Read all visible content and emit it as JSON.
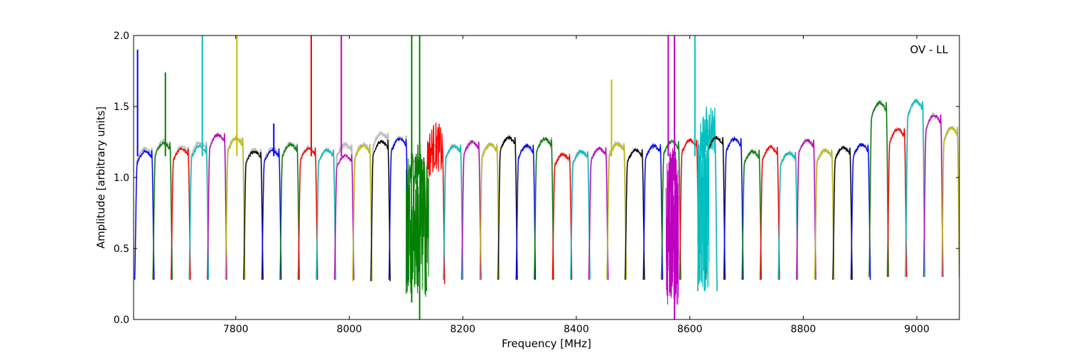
{
  "chart_data": {
    "type": "line",
    "title": "",
    "annotation": "OV - LL",
    "xlabel": "Frequency [MHz]",
    "ylabel": "Amplitude [arbitrary units]",
    "xlim": [
      7620,
      9075
    ],
    "ylim": [
      0.0,
      2.0
    ],
    "xticks": [
      7800,
      8000,
      8200,
      8400,
      8600,
      8800,
      9000
    ],
    "xtick_labels": [
      "7800",
      "8000",
      "8200",
      "8400",
      "8600",
      "8800",
      "9000"
    ],
    "yticks": [
      0.0,
      0.5,
      1.0,
      1.5,
      2.0
    ],
    "ytick_labels": [
      "0.0",
      "0.5",
      "1.0",
      "1.5",
      "2.0"
    ],
    "grid": false,
    "legend": "none",
    "color_cycle": [
      "#0000ff",
      "#008000",
      "#ff0000",
      "#00bfbf",
      "#bf00bf",
      "#bfbf00",
      "#000000"
    ],
    "background_trace_color": "#bfbfbf",
    "channel_width_mhz": 32,
    "channels": [
      {
        "color": "#0000ff",
        "x_start": 7622,
        "x_end": 7656,
        "low": 0.28,
        "peak": 1.2,
        "bg_peak": 1.22
      },
      {
        "color": "#008000",
        "x_start": 7654,
        "x_end": 7688,
        "low": 0.28,
        "peak": 1.26,
        "bg_peak": 1.27
      },
      {
        "color": "#ff0000",
        "x_start": 7686,
        "x_end": 7720,
        "low": 0.28,
        "peak": 1.22,
        "bg_peak": 1.23
      },
      {
        "color": "#00bfbf",
        "x_start": 7718,
        "x_end": 7752,
        "low": 0.28,
        "peak": 1.24,
        "bg_peak": 1.26
      },
      {
        "color": "#bf00bf",
        "x_start": 7750,
        "x_end": 7784,
        "low": 0.28,
        "peak": 1.32,
        "bg_peak": 1.32
      },
      {
        "color": "#bfbf00",
        "x_start": 7782,
        "x_end": 7816,
        "low": 0.28,
        "peak": 1.29,
        "bg_peak": 1.3
      },
      {
        "color": "#000000",
        "x_start": 7814,
        "x_end": 7848,
        "low": 0.28,
        "peak": 1.2,
        "bg_peak": 1.21
      },
      {
        "color": "#0000ff",
        "x_start": 7846,
        "x_end": 7880,
        "low": 0.28,
        "peak": 1.21,
        "bg_peak": 1.22
      },
      {
        "color": "#008000",
        "x_start": 7878,
        "x_end": 7912,
        "low": 0.28,
        "peak": 1.25,
        "bg_peak": 1.26
      },
      {
        "color": "#ff0000",
        "x_start": 7910,
        "x_end": 7944,
        "low": 0.28,
        "peak": 1.22,
        "bg_peak": 1.23
      },
      {
        "color": "#00bfbf",
        "x_start": 7942,
        "x_end": 7976,
        "low": 0.28,
        "peak": 1.21,
        "bg_peak": 1.21
      },
      {
        "color": "#bf00bf",
        "x_start": 7974,
        "x_end": 8008,
        "low": 0.28,
        "peak": 1.17,
        "bg_peak": 1.25
      },
      {
        "color": "#bfbf00",
        "x_start": 8006,
        "x_end": 8040,
        "low": 0.27,
        "peak": 1.24,
        "bg_peak": 1.25
      },
      {
        "color": "#000000",
        "x_start": 8038,
        "x_end": 8072,
        "low": 0.27,
        "peak": 1.27,
        "bg_peak": 1.33
      },
      {
        "color": "#0000ff",
        "x_start": 8070,
        "x_end": 8104,
        "low": 0.28,
        "peak": 1.29,
        "bg_peak": 1.3
      },
      {
        "color": "#008000",
        "x_start": 8102,
        "x_end": 8136,
        "low": 0.2,
        "peak": 1.1,
        "bg_peak": 1.15
      },
      {
        "color": "#ff0000",
        "x_start": 8134,
        "x_end": 8168,
        "low": 0.25,
        "peak": 1.24,
        "bg_peak": 1.24
      },
      {
        "color": "#00bfbf",
        "x_start": 8166,
        "x_end": 8200,
        "low": 0.28,
        "peak": 1.24,
        "bg_peak": 1.24
      },
      {
        "color": "#bf00bf",
        "x_start": 8198,
        "x_end": 8232,
        "low": 0.28,
        "peak": 1.27,
        "bg_peak": 1.27
      },
      {
        "color": "#bfbf00",
        "x_start": 8230,
        "x_end": 8264,
        "low": 0.28,
        "peak": 1.25,
        "bg_peak": 1.25
      },
      {
        "color": "#000000",
        "x_start": 8262,
        "x_end": 8296,
        "low": 0.28,
        "peak": 1.3,
        "bg_peak": 1.3
      },
      {
        "color": "#0000ff",
        "x_start": 8294,
        "x_end": 8328,
        "low": 0.28,
        "peak": 1.24,
        "bg_peak": 1.24
      },
      {
        "color": "#008000",
        "x_start": 8326,
        "x_end": 8360,
        "low": 0.28,
        "peak": 1.29,
        "bg_peak": 1.29
      },
      {
        "color": "#ff0000",
        "x_start": 8358,
        "x_end": 8392,
        "low": 0.28,
        "peak": 1.18,
        "bg_peak": 1.18
      },
      {
        "color": "#00bfbf",
        "x_start": 8390,
        "x_end": 8424,
        "low": 0.28,
        "peak": 1.2,
        "bg_peak": 1.2
      },
      {
        "color": "#bf00bf",
        "x_start": 8422,
        "x_end": 8456,
        "low": 0.28,
        "peak": 1.22,
        "bg_peak": 1.22
      },
      {
        "color": "#bfbf00",
        "x_start": 8454,
        "x_end": 8488,
        "low": 0.28,
        "peak": 1.25,
        "bg_peak": 1.26
      },
      {
        "color": "#000000",
        "x_start": 8486,
        "x_end": 8520,
        "low": 0.28,
        "peak": 1.21,
        "bg_peak": 1.21
      },
      {
        "color": "#0000ff",
        "x_start": 8518,
        "x_end": 8552,
        "low": 0.28,
        "peak": 1.24,
        "bg_peak": 1.24
      },
      {
        "color": "#008000",
        "x_start": 8550,
        "x_end": 8584,
        "low": 0.28,
        "peak": 1.27,
        "bg_peak": 1.27
      },
      {
        "color": "#bf00bf",
        "x_start": 8560,
        "x_end": 8578,
        "low": 0.25,
        "peak": 1.05,
        "bg_peak": 1.05
      },
      {
        "color": "#ff0000",
        "x_start": 8582,
        "x_end": 8616,
        "low": 0.28,
        "peak": 1.28,
        "bg_peak": 1.28
      },
      {
        "color": "#00bfbf",
        "x_start": 8614,
        "x_end": 8648,
        "low": 0.2,
        "peak": 1.35,
        "bg_peak": 1.35
      },
      {
        "color": "#000000",
        "x_start": 8628,
        "x_end": 8662,
        "low": 0.28,
        "peak": 1.3,
        "bg_peak": 1.3
      },
      {
        "color": "#0000ff",
        "x_start": 8660,
        "x_end": 8694,
        "low": 0.28,
        "peak": 1.29,
        "bg_peak": 1.29
      },
      {
        "color": "#008000",
        "x_start": 8692,
        "x_end": 8726,
        "low": 0.28,
        "peak": 1.2,
        "bg_peak": 1.2
      },
      {
        "color": "#ff0000",
        "x_start": 8724,
        "x_end": 8758,
        "low": 0.28,
        "peak": 1.23,
        "bg_peak": 1.23
      },
      {
        "color": "#00bfbf",
        "x_start": 8756,
        "x_end": 8790,
        "low": 0.28,
        "peak": 1.19,
        "bg_peak": 1.19
      },
      {
        "color": "#bf00bf",
        "x_start": 8788,
        "x_end": 8822,
        "low": 0.28,
        "peak": 1.28,
        "bg_peak": 1.28
      },
      {
        "color": "#bfbf00",
        "x_start": 8820,
        "x_end": 8854,
        "low": 0.28,
        "peak": 1.21,
        "bg_peak": 1.21
      },
      {
        "color": "#000000",
        "x_start": 8852,
        "x_end": 8886,
        "low": 0.28,
        "peak": 1.23,
        "bg_peak": 1.23
      },
      {
        "color": "#0000ff",
        "x_start": 8884,
        "x_end": 8918,
        "low": 0.28,
        "peak": 1.25,
        "bg_peak": 1.25
      },
      {
        "color": "#008000",
        "x_start": 8916,
        "x_end": 8950,
        "low": 0.3,
        "peak": 1.55,
        "bg_peak": 1.55
      },
      {
        "color": "#ff0000",
        "x_start": 8948,
        "x_end": 8982,
        "low": 0.3,
        "peak": 1.36,
        "bg_peak": 1.36
      },
      {
        "color": "#00bfbf",
        "x_start": 8980,
        "x_end": 9014,
        "low": 0.3,
        "peak": 1.56,
        "bg_peak": 1.56
      },
      {
        "color": "#bf00bf",
        "x_start": 9012,
        "x_end": 9046,
        "low": 0.3,
        "peak": 1.46,
        "bg_peak": 1.46
      },
      {
        "color": "#bfbf00",
        "x_start": 9044,
        "x_end": 9075,
        "low": 0.3,
        "peak": 1.37,
        "bg_peak": 1.37
      }
    ],
    "rfi_spikes": [
      {
        "color": "#0000ff",
        "x": 7627,
        "y": 1.9
      },
      {
        "color": "#008000",
        "x": 7676,
        "y": 1.74
      },
      {
        "color": "#00bfbf",
        "x": 7741,
        "y": 2.0
      },
      {
        "color": "#bfbf00",
        "x": 7802,
        "y": 2.0
      },
      {
        "color": "#0000ff",
        "x": 7867,
        "y": 1.38
      },
      {
        "color": "#ff0000",
        "x": 7933,
        "y": 2.0
      },
      {
        "color": "#bf00bf",
        "x": 7986,
        "y": 2.0
      },
      {
        "color": "#bfbf00",
        "x": 8462,
        "y": 1.69
      },
      {
        "color": "#00bfbf",
        "x": 8609,
        "y": 2.0
      },
      {
        "color": "#bf00bf",
        "x": 8562,
        "y": 2.0
      },
      {
        "color": "#bf00bf",
        "x": 8573,
        "y": 2.0
      },
      {
        "color": "#008000",
        "x": 8110,
        "y": 2.0
      },
      {
        "color": "#008000",
        "x": 8124,
        "y": 2.0
      }
    ],
    "dips": [
      {
        "color": "#008000",
        "x": 8124,
        "y": 0.0
      },
      {
        "color": "#008000",
        "x": 8110,
        "y": 0.12
      },
      {
        "color": "#bf00bf",
        "x": 8573,
        "y": 0.0
      },
      {
        "color": "#00bfbf",
        "x": 8626,
        "y": 0.2
      }
    ]
  }
}
